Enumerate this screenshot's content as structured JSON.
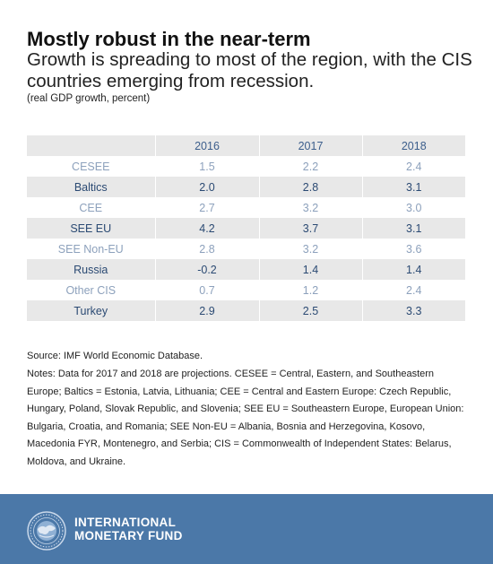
{
  "header": {
    "title": "Mostly robust in the near-term",
    "subtitle": "Growth is spreading to most of the region, with the CIS countries emerging from recession.",
    "unit": "(real GDP growth, percent)"
  },
  "chart_data": {
    "type": "table",
    "columns": [
      "",
      "2016",
      "2017",
      "2018"
    ],
    "rows": [
      {
        "region": "CESEE",
        "values": [
          "1.5",
          "2.2",
          "2.4"
        ]
      },
      {
        "region": "Baltics",
        "values": [
          "2.0",
          "2.8",
          "3.1"
        ]
      },
      {
        "region": "CEE",
        "values": [
          "2.7",
          "3.2",
          "3.0"
        ]
      },
      {
        "region": "SEE EU",
        "values": [
          "4.2",
          "3.7",
          "3.1"
        ]
      },
      {
        "region": "SEE Non-EU",
        "values": [
          "2.8",
          "3.2",
          "3.6"
        ]
      },
      {
        "region": "Russia",
        "values": [
          "-0.2",
          "1.4",
          "1.4"
        ]
      },
      {
        "region": "Other CIS",
        "values": [
          "0.7",
          "1.2",
          "2.4"
        ]
      },
      {
        "region": "Turkey",
        "values": [
          "2.9",
          "2.5",
          "3.3"
        ]
      }
    ]
  },
  "source": "Source: IMF World Economic Database.",
  "notes": "Notes: Data for 2017 and 2018 are projections. CESEE = Central, Eastern, and Southeastern Europe; Baltics = Estonia, Latvia, Lithuania; CEE = Central and Eastern Europe: Czech Republic, Hungary, Poland, Slovak Republic, and Slovenia; SEE EU = Southeastern Europe, European Union: Bulgaria, Croatia, and Romania; SEE Non-EU = Albania, Bosnia and Herzegovina, Kosovo, Macedonia FYR, Montenegro, and Serbia; CIS = Commonwealth of Independent States: Belarus, Moldova, and Ukraine.",
  "footer": {
    "logo_icon": "imf-seal-icon",
    "org_line1": "INTERNATIONAL",
    "org_line2": "MONETARY FUND",
    "seal_text": "INTERNATIONAL MONETARY FUND"
  },
  "colors": {
    "table_header_text": "#3c5e8c",
    "row_shade": "#e8e8e8",
    "light_text": "#8da1bc",
    "dark_text": "#2b4a73",
    "footer_bg": "#4b78a8"
  }
}
